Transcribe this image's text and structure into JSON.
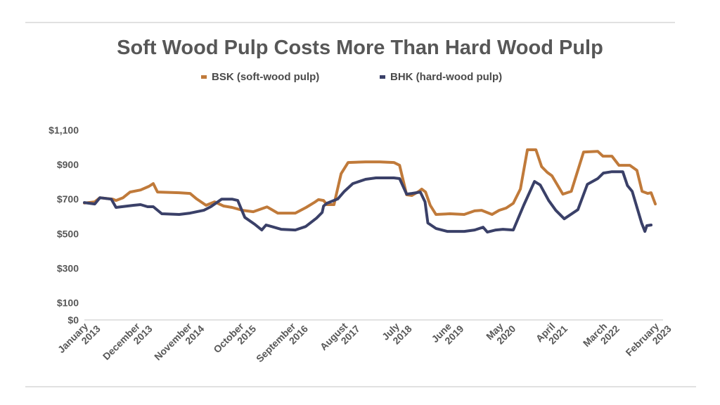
{
  "chart_data": {
    "type": "line",
    "title": "Soft Wood Pulp Costs More Than Hard Wood Pulp",
    "xlabel": "",
    "ylabel": "",
    "ylim": [
      0,
      1100
    ],
    "y_ticks": [
      "$0",
      "$100",
      "$300",
      "$500",
      "$700",
      "$900",
      "$1,100"
    ],
    "y_tick_values": [
      0,
      100,
      300,
      500,
      700,
      900,
      1100
    ],
    "x_range_months": [
      0,
      121
    ],
    "x_ticks": [
      {
        "month": 0,
        "line1": "January",
        "line2": "2013"
      },
      {
        "month": 11,
        "line1": "December",
        "line2": "2013"
      },
      {
        "month": 22,
        "line1": "November",
        "line2": "2014"
      },
      {
        "month": 33,
        "line1": "October",
        "line2": "2015"
      },
      {
        "month": 44,
        "line1": "September",
        "line2": "2016"
      },
      {
        "month": 55,
        "line1": "August",
        "line2": "2017"
      },
      {
        "month": 66,
        "line1": "July",
        "line2": "2018"
      },
      {
        "month": 77,
        "line1": "June",
        "line2": "2019"
      },
      {
        "month": 88,
        "line1": "May",
        "line2": "2020"
      },
      {
        "month": 99,
        "line1": "April",
        "line2": "2021"
      },
      {
        "month": 110,
        "line1": "March",
        "line2": "2022"
      },
      {
        "month": 121,
        "line1": "February",
        "line2": "2023"
      }
    ],
    "grid": false,
    "legend_position": "top-center",
    "series": [
      {
        "name": "BSK (soft-wood pulp)",
        "color": "#c07a3a",
        "points": [
          [
            0,
            677
          ],
          [
            2.2,
            684
          ],
          [
            3.3,
            708
          ],
          [
            6,
            700
          ],
          [
            6.7,
            692
          ],
          [
            8.2,
            708
          ],
          [
            9.7,
            741
          ],
          [
            11.9,
            753
          ],
          [
            13.7,
            774
          ],
          [
            14.6,
            790
          ],
          [
            15.5,
            741
          ],
          [
            20.1,
            737
          ],
          [
            22.4,
            733
          ],
          [
            23.8,
            701
          ],
          [
            25.8,
            664
          ],
          [
            27.6,
            684
          ],
          [
            29.5,
            660
          ],
          [
            31.3,
            652
          ],
          [
            33.5,
            635
          ],
          [
            35.8,
            627
          ],
          [
            38.7,
            655
          ],
          [
            41,
            619
          ],
          [
            44.7,
            619
          ],
          [
            47,
            652
          ],
          [
            48.7,
            680
          ],
          [
            49.6,
            697
          ],
          [
            50.7,
            692
          ],
          [
            51.4,
            668
          ],
          [
            52.9,
            668
          ],
          [
            54.4,
            847
          ],
          [
            55.9,
            912
          ],
          [
            59.6,
            916
          ],
          [
            62.6,
            916
          ],
          [
            65.6,
            912
          ],
          [
            66.8,
            896
          ],
          [
            68.3,
            725
          ],
          [
            69.4,
            721
          ],
          [
            70.9,
            745
          ],
          [
            71.5,
            758
          ],
          [
            72.3,
            741
          ],
          [
            73.3,
            664
          ],
          [
            74.5,
            611
          ],
          [
            77.5,
            615
          ],
          [
            80.5,
            611
          ],
          [
            82.7,
            632
          ],
          [
            84.2,
            635
          ],
          [
            86.4,
            611
          ],
          [
            87.9,
            635
          ],
          [
            89.4,
            648
          ],
          [
            90.9,
            676
          ],
          [
            92.4,
            758
          ],
          [
            93.9,
            986
          ],
          [
            95.7,
            986
          ],
          [
            96.9,
            888
          ],
          [
            98.1,
            855
          ],
          [
            99.1,
            835
          ],
          [
            101.4,
            729
          ],
          [
            103.2,
            745
          ],
          [
            105.8,
            973
          ],
          [
            108.8,
            977
          ],
          [
            109.9,
            949
          ],
          [
            111.8,
            949
          ],
          [
            113.3,
            896
          ],
          [
            115.6,
            896
          ],
          [
            117.1,
            867
          ],
          [
            118.2,
            745
          ],
          [
            119.4,
            733
          ],
          [
            120.1,
            737
          ],
          [
            121,
            672
          ]
        ]
      },
      {
        "name": "BHK (hard-wood pulp)",
        "color": "#3a4068",
        "points": [
          [
            0,
            680
          ],
          [
            2.2,
            672
          ],
          [
            3.3,
            708
          ],
          [
            5.7,
            700
          ],
          [
            6.7,
            652
          ],
          [
            10.4,
            664
          ],
          [
            11.9,
            668
          ],
          [
            13.4,
            656
          ],
          [
            14.6,
            656
          ],
          [
            16.4,
            615
          ],
          [
            20.1,
            611
          ],
          [
            22.4,
            619
          ],
          [
            25.3,
            635
          ],
          [
            26.8,
            656
          ],
          [
            29.1,
            700
          ],
          [
            31.3,
            700
          ],
          [
            32.5,
            692
          ],
          [
            34,
            594
          ],
          [
            36.1,
            554
          ],
          [
            37.6,
            521
          ],
          [
            38.5,
            550
          ],
          [
            40.2,
            537
          ],
          [
            41.7,
            525
          ],
          [
            44.7,
            521
          ],
          [
            46.9,
            541
          ],
          [
            49.2,
            590
          ],
          [
            50.4,
            623
          ],
          [
            50.7,
            660
          ],
          [
            51.4,
            676
          ],
          [
            53.7,
            701
          ],
          [
            55.1,
            745
          ],
          [
            56.9,
            790
          ],
          [
            59.6,
            815
          ],
          [
            61.8,
            823
          ],
          [
            65.6,
            823
          ],
          [
            66.8,
            819
          ],
          [
            68.3,
            729
          ],
          [
            69.4,
            733
          ],
          [
            71.2,
            741
          ],
          [
            72.2,
            684
          ],
          [
            72.8,
            562
          ],
          [
            74.5,
            530
          ],
          [
            76.9,
            513
          ],
          [
            80.5,
            513
          ],
          [
            82.7,
            521
          ],
          [
            84.5,
            537
          ],
          [
            85.4,
            509
          ],
          [
            87.2,
            521
          ],
          [
            88.7,
            525
          ],
          [
            90.9,
            521
          ],
          [
            93.1,
            664
          ],
          [
            95.4,
            802
          ],
          [
            96.6,
            782
          ],
          [
            98.4,
            692
          ],
          [
            99.9,
            635
          ],
          [
            101.7,
            586
          ],
          [
            104.6,
            639
          ],
          [
            106.6,
            786
          ],
          [
            108.8,
            819
          ],
          [
            110,
            851
          ],
          [
            111.8,
            859
          ],
          [
            114.1,
            859
          ],
          [
            115.1,
            778
          ],
          [
            116.1,
            745
          ],
          [
            118.1,
            562
          ],
          [
            118.8,
            513
          ],
          [
            119.2,
            546
          ],
          [
            120.1,
            550
          ]
        ]
      }
    ]
  },
  "legend": {
    "items": [
      {
        "label": "BSK (soft-wood pulp)",
        "color": "#c07a3a"
      },
      {
        "label": "BHK (hard-wood pulp)",
        "color": "#3a4068"
      }
    ]
  }
}
